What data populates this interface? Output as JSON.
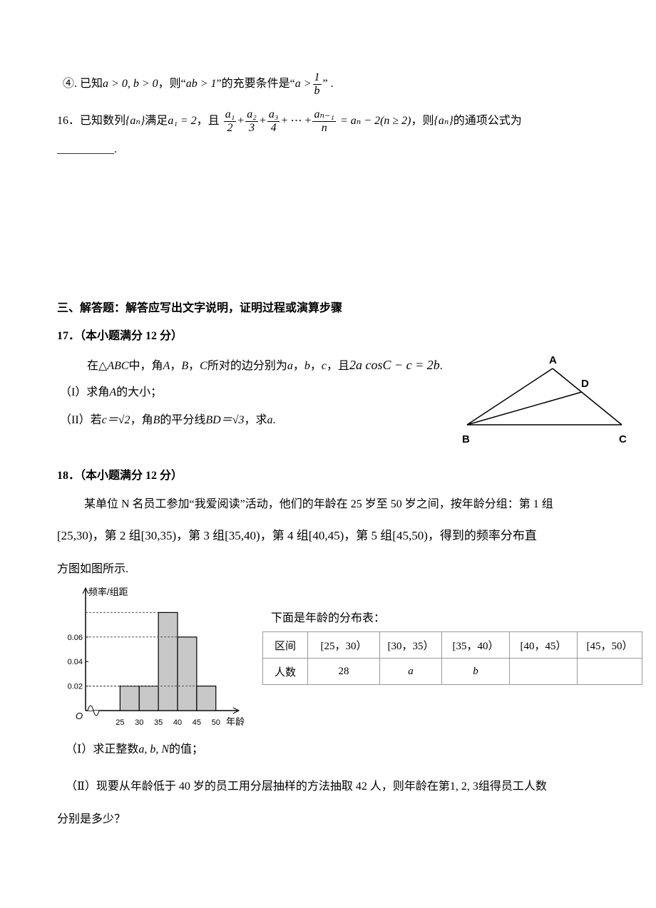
{
  "item4": {
    "text1": "④. 已知",
    "math1": "a > 0, b > 0",
    "text2": "，则“",
    "math2": "ab > 1",
    "text3": "”的充要条件是“",
    "math3": "a >",
    "frac": {
      "num": "1",
      "den": "b"
    },
    "text4": "” ."
  },
  "q16": {
    "text1": "16．已知数列",
    "math1": "{aₙ}",
    "text2": "满足",
    "math2": "a₁ = 2",
    "text3": "，且",
    "fracs": [
      {
        "num": "a₁",
        "den": "2"
      },
      {
        "num": "a₂",
        "den": "3"
      },
      {
        "num": "a₃",
        "den": "4"
      },
      {
        "num": "aₙ₋₁",
        "den": "n"
      }
    ],
    "ops": [
      "+",
      "+",
      "+ ⋯ +"
    ],
    "math3": "= aₙ − 2(n ≥ 2)",
    "text4": "，则",
    "math4": "{aₙ}",
    "text5": "的通项公式为",
    "blank": "__________."
  },
  "section": "三、解答题：解答应写出文字说明，证明过程或演算步骤",
  "q17": {
    "header": "17．（本小题满分 12 分）",
    "stem": {
      "text1": "在",
      "math1": "△ABC",
      "text2": "中，角",
      "math2": "A",
      "text3": "，",
      "math3": "B",
      "text4": "，",
      "math4": "C",
      "text5": "所对的边分别为",
      "math5": "a",
      "text6": "，",
      "math6": "b",
      "text7": "，",
      "math7": "c",
      "text8": "，且",
      "math8": "2a cosC − c = 2b",
      "text9": "."
    },
    "part1": {
      "text1": "（I）求角",
      "math1": "A",
      "text2": "的大小；"
    },
    "part2": {
      "text1": "（II）若",
      "math1": "c＝√2",
      "text2": "，角",
      "math2": "B",
      "text3": "的平分线",
      "math3": "BD＝√3",
      "text4": "，求",
      "math4": "a",
      "text5": "."
    },
    "figure": {
      "labels": [
        "A",
        "B",
        "C",
        "D"
      ]
    }
  },
  "q18": {
    "header": "18．（本小题满分 12 分）",
    "lines": [
      "某单位 N 名员工参加“我爱阅读”活动，他们的年龄在 25 岁至 50 岁之间，按年龄分组：第 1 组",
      "[25,30)，第 2 组[30,35)，第 3 组[35,40)，第 4 组[40,45)，第 5 组[45,50)，得到的频率分布直",
      "方图如图所示."
    ],
    "table_caption": "下面是年龄的分布表：",
    "table": {
      "header": [
        "区间",
        "[25，30）",
        "[30，35）",
        "[35，40）",
        "[40，45）",
        "[45，50）"
      ],
      "row": [
        "人数",
        "28",
        "a",
        "b"
      ]
    },
    "part1": {
      "text1": "（Ⅰ）求正整数",
      "math1": "a, b, N",
      "text2": "的值；"
    },
    "part2": {
      "text1": "（Ⅱ）现要从年龄低于 40 岁的员工用分层抽样的方法抽取 42 人，则年龄在第",
      "math1": "1, 2, 3",
      "text2": "组得员工人数",
      "text3": "分别是多少？"
    }
  },
  "chart_data": {
    "type": "histogram",
    "y_label": "频率/组距",
    "x_label": "年龄",
    "origin_label": "O",
    "bins": [
      25,
      30,
      35,
      40,
      45,
      50
    ],
    "values": [
      0.02,
      0.02,
      0.08,
      0.06,
      0.02
    ],
    "xlim": [
      16,
      56
    ],
    "ylim": [
      0,
      0.1
    ],
    "yticks": [
      0.02,
      0.04,
      0.06
    ],
    "color": "#c8c8c8"
  }
}
